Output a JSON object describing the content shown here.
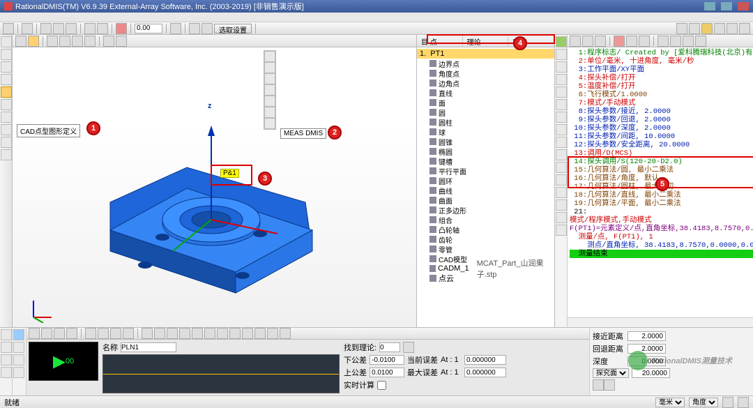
{
  "title": "RationalDMIS(TM) V6.9.39    External-Array Software, Inc. (2003-2019)  [非销售演示版]",
  "main_toolbar": {
    "num_input": "0.00",
    "select_btn": "选取设置"
  },
  "callouts": {
    "c1": "CAD点型图形定义",
    "c2": "MEAS DMIS",
    "pt": "P&1"
  },
  "badges": {
    "b1": "1",
    "b2": "2",
    "b3": "3",
    "b4": "4",
    "b5": "5"
  },
  "axis": {
    "z": "z"
  },
  "tree": {
    "head": [
      "目  点",
      "理论",
      "实际"
    ],
    "pt1": "PT1",
    "items": [
      "边界点",
      "角度点",
      "边角点",
      "直线",
      "面",
      "圆",
      "圆柱",
      "球",
      "圆锥",
      "椭圆",
      "键槽",
      "平行平面",
      "圆环",
      "曲线",
      "曲面",
      "正多边形",
      "组合",
      "凸轮轴",
      "齿轮",
      "零管",
      "CAD模型"
    ],
    "cadm": "CADM_1",
    "cadm_file": "MCAT_Part_山润果子.stp",
    "pointcloud": "点云"
  },
  "code": {
    "l1": "  1:程序标志/ Created by [爱科腾瑞科技(北京)有限公司-0",
    "l2": "  2:单位/毫米, 十进角度, 毫米/秒",
    "l3": "  3:工作平面/XY平面",
    "l4": "  4:探头补偿/打开",
    "l5": "  5:温度补偿/打开",
    "l6": "  6:飞行模式/1.0000",
    "l7": "  7:模式/手动模式",
    "l8": "  8:探头参数/接近, 2.0000",
    "l9": "  9:探头参数/回退, 2.0000",
    "l10": " 10:探头参数/深度, 2.0000",
    "l11": " 11:探头参数/间距, 10.0000",
    "l12": " 12:探头参数/安全距离, 20.0000",
    "l13": " 13:调用/D(MCS)",
    "l14": " 14:探头调用/S(120-20-D2.0)",
    "l15": " 15:几何算法/圆, 最小二乘法",
    "l16": " 16:几何算法/角度, 默认",
    "l17": " 17:几何算法/圆柱, 最大内切",
    "l18": " 18:几何算法/直线, 最小二乘法",
    "l19": " 19:几何算法/平面, 最小二乘法",
    "l20": " 21:",
    "l21": "模式/程序模式,手动模式",
    "l22": "F(PT1)=元素定义/点,直角坐标,38.4183,8.7570,0.0000,0.0000,0",
    "l23": "  测量/点, F(PT1), 1",
    "l24": "    测点/直角坐标, 38.4183,8.7570,0.0000,0.0000,0.0000,1.0000",
    "l25": "  测量结束"
  },
  "bottom": {
    "name_lbl": "名称",
    "name_val": "PLN1",
    "hits_lbl": "找到理论:",
    "hits_val": "0",
    "ltol_lbl": "下公差",
    "ltol_val": "-0.0100",
    "utol_lbl": "上公差",
    "utol_val": "0.0100",
    "curadj_lbl": "当前误差",
    "curadj_at": "At : 1",
    "curadj_val": "0.000000",
    "maxadj_lbl": "最大误差",
    "maxadj_at": "At : 1",
    "maxadj_val": "0.000000",
    "calc_lbl": "实时计算",
    "dro": "00"
  },
  "right_params": {
    "approach_lbl": "接近距离",
    "approach_val": "2.0000",
    "retract_lbl": "回退距离",
    "retract_val": "2.0000",
    "depth_lbl": "深度",
    "depth_val": "0.0000",
    "spacing_val": "20.0000",
    "mode_sel": "探究面"
  },
  "status": {
    "left": "就绪",
    "unit1": "毫米",
    "unit2": "角度"
  },
  "watermark": "RationalDMIS测量技术"
}
